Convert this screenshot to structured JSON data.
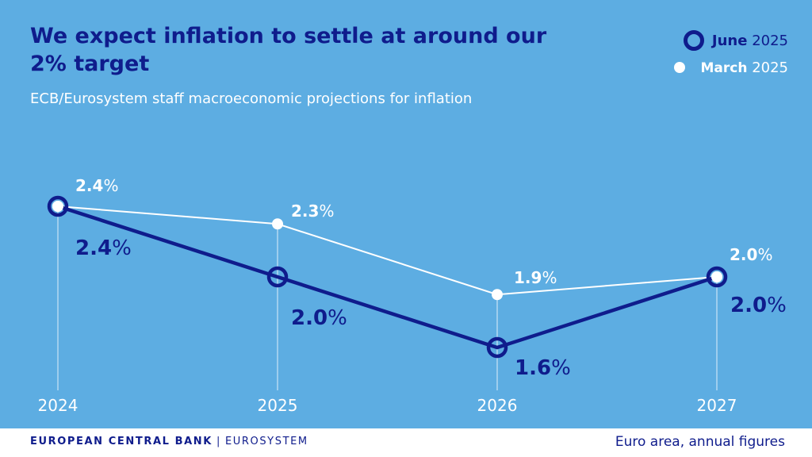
{
  "title": "We expect inflation to settle at around our 2% target",
  "subtitle": "ECB/Eurosystem staff macroeconomic projections for inflation",
  "legend": {
    "june": {
      "name": "June",
      "year": "2025"
    },
    "march": {
      "name": "March",
      "year": "2025"
    }
  },
  "footer": {
    "bank": "EUROPEAN CENTRAL BANK",
    "separator": "|",
    "system": "EUROSYSTEM",
    "note": "Euro area, annual figures"
  },
  "colors": {
    "background": "#5dade2",
    "june": "#0f1c8c",
    "march": "#ffffff"
  },
  "chart_data": {
    "type": "line",
    "title": "We expect inflation to settle at around our 2% target",
    "categories": [
      "2024",
      "2025",
      "2026",
      "2027"
    ],
    "ylim": [
      1.0,
      2.8
    ],
    "grid": false,
    "legend_position": "top-right",
    "series": [
      {
        "name": "June 2025",
        "values": [
          2.4,
          2.0,
          1.6,
          2.0
        ],
        "labels": [
          "2.4",
          "2.0",
          "1.6",
          "2.0"
        ]
      },
      {
        "name": "March 2025",
        "values": [
          2.4,
          2.3,
          1.9,
          2.0
        ],
        "labels": [
          "2.4",
          "2.3",
          "1.9",
          "2.0"
        ]
      }
    ],
    "unit_suffix": "%"
  }
}
